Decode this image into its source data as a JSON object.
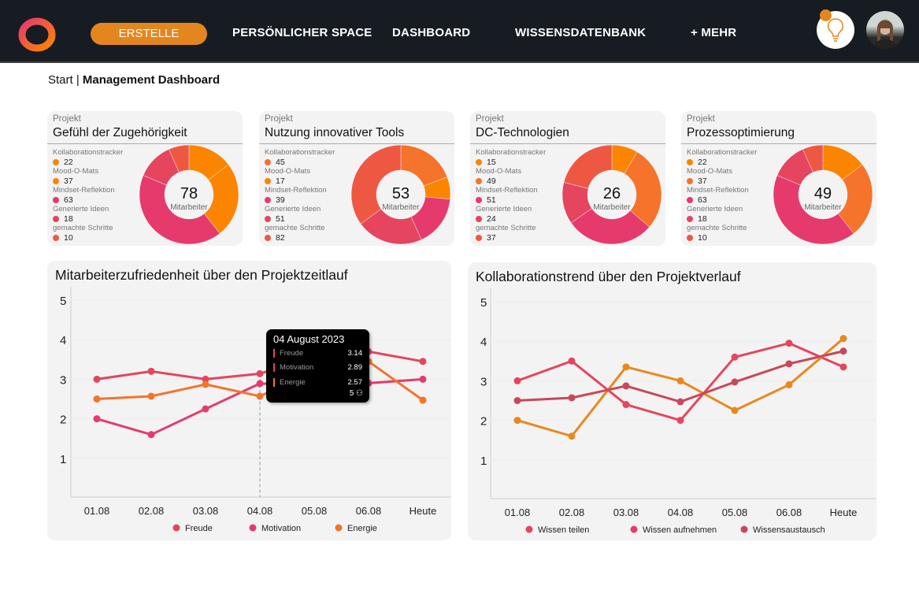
{
  "nav": {
    "create": "ERSTELLE",
    "items": [
      "PERSÖNLICHER SPACE",
      "DASHBOARD",
      "WISSENSDATENBANK",
      "+ MEHR"
    ],
    "icons": [
      "lightbulb-icon",
      "user-avatar"
    ]
  },
  "breadcrumb": {
    "start": "Start",
    "sep": " | ",
    "current": "Management Dashboard"
  },
  "colors": {
    "accent": "#e4861e",
    "header": "#161c22"
  },
  "cards": [
    {
      "label": "Projekt",
      "title": "Gefühl der Zugehörigkeit",
      "total": "78",
      "unit": "Mitarbeiter",
      "items": [
        {
          "name": "Kollaborationstracker",
          "value": 22,
          "color": "#fb8500"
        },
        {
          "name": "Mood-O-Mats",
          "value": 37,
          "color": "#fb8500"
        },
        {
          "name": "Mindset-Reflektion",
          "value": 63,
          "color": "#e63a6d"
        },
        {
          "name": "Generierte Ideen",
          "value": 18,
          "color": "#e5455e"
        },
        {
          "name": "gemachte Schritte",
          "value": 10,
          "color": "#ee5843"
        }
      ]
    },
    {
      "label": "Projekt",
      "title": "Nutzung innovativer Tools",
      "total": "53",
      "unit": "Mitarbeiter",
      "items": [
        {
          "name": "Kollaborationstracker",
          "value": 45,
          "color": "#f5732a"
        },
        {
          "name": "Mood-O-Mats",
          "value": 17,
          "color": "#fb8500"
        },
        {
          "name": "Mindset-Reflektion",
          "value": 39,
          "color": "#e63a6d"
        },
        {
          "name": "Generierte Ideen",
          "value": 51,
          "color": "#e5455e"
        },
        {
          "name": "gemachte Schritte",
          "value": 82,
          "color": "#ee5843"
        }
      ]
    },
    {
      "label": "Projekt",
      "title": "DC-Technologien",
      "total": "26",
      "unit": "Mitarbeiter",
      "items": [
        {
          "name": "Kollaborationstracker",
          "value": 15,
          "color": "#fb8500"
        },
        {
          "name": "Mood-O-Mats",
          "value": 49,
          "color": "#f5732a"
        },
        {
          "name": "Mindset-Reflektion",
          "value": 51,
          "color": "#e63a6d"
        },
        {
          "name": "Generierte Ideen",
          "value": 24,
          "color": "#e5455e"
        },
        {
          "name": "gemachte Schritte",
          "value": 37,
          "color": "#ee5843"
        }
      ]
    },
    {
      "label": "Projekt",
      "title": "Prozessoptimierung",
      "total": "49",
      "unit": "Mitarbeiter",
      "items": [
        {
          "name": "Kollaborationstracker",
          "value": 22,
          "color": "#fb8500"
        },
        {
          "name": "Mood-O-Mats",
          "value": 37,
          "color": "#f5732a"
        },
        {
          "name": "Mindset-Reflektion",
          "value": 63,
          "color": "#e63a6d"
        },
        {
          "name": "Generierte Ideen",
          "value": 18,
          "color": "#e5455e"
        },
        {
          "name": "gemachte Schritte",
          "value": 10,
          "color": "#ee5843"
        }
      ]
    }
  ],
  "chart_data": [
    {
      "type": "line",
      "title": "Mitarbeiterzufriedenheit über den Projektzeitlauf",
      "categories": [
        "01.08",
        "02.08",
        "03.08",
        "04.08",
        "05.08",
        "06.08",
        "Heute"
      ],
      "ylim": [
        0,
        5
      ],
      "yticks": [
        1,
        2,
        3,
        4,
        5
      ],
      "legend": "bottom",
      "series": [
        {
          "name": "Freude",
          "color": "#e5455e",
          "values": [
            3.0,
            3.2,
            3.0,
            3.14,
            3.6,
            3.7,
            3.45
          ]
        },
        {
          "name": "Motivation",
          "color": "#e63a6d",
          "values": [
            2.0,
            1.6,
            2.25,
            2.89,
            2.85,
            2.9,
            3.0
          ]
        },
        {
          "name": "Energie",
          "color": "#f5732a",
          "values": [
            2.5,
            2.57,
            2.87,
            2.57,
            3.2,
            3.45,
            2.47
          ]
        }
      ],
      "tooltip": {
        "date": "04 August 2023",
        "rows": [
          {
            "name": "Freude",
            "value": "3.14"
          },
          {
            "name": "Motivation",
            "value": "2.89"
          },
          {
            "name": "Energie",
            "value": "2.57"
          }
        ],
        "count": "5"
      }
    },
    {
      "type": "line",
      "title": "Kollaborationstrend über den Projektverlauf",
      "categories": [
        "01.08",
        "02.08",
        "03.08",
        "04.08",
        "05.08",
        "06.08",
        "Heute"
      ],
      "ylim": [
        0,
        5
      ],
      "yticks": [
        1,
        2,
        3,
        4,
        5
      ],
      "legend": "bottom",
      "series": [
        {
          "name": "Wissen teilen",
          "color": "#e5455e",
          "values": [
            3.0,
            3.5,
            2.4,
            2.0,
            3.6,
            3.95,
            3.35
          ]
        },
        {
          "name": "Wissen aufnehmen",
          "color": "#e8891c",
          "legend_color": "#e63a6d",
          "values": [
            2.0,
            1.6,
            3.35,
            3.0,
            2.25,
            2.9,
            4.07
          ]
        },
        {
          "name": "Wissensaustausch",
          "color": "#c8485a",
          "values": [
            2.5,
            2.57,
            2.87,
            2.47,
            2.97,
            3.43,
            3.75
          ]
        }
      ]
    }
  ]
}
